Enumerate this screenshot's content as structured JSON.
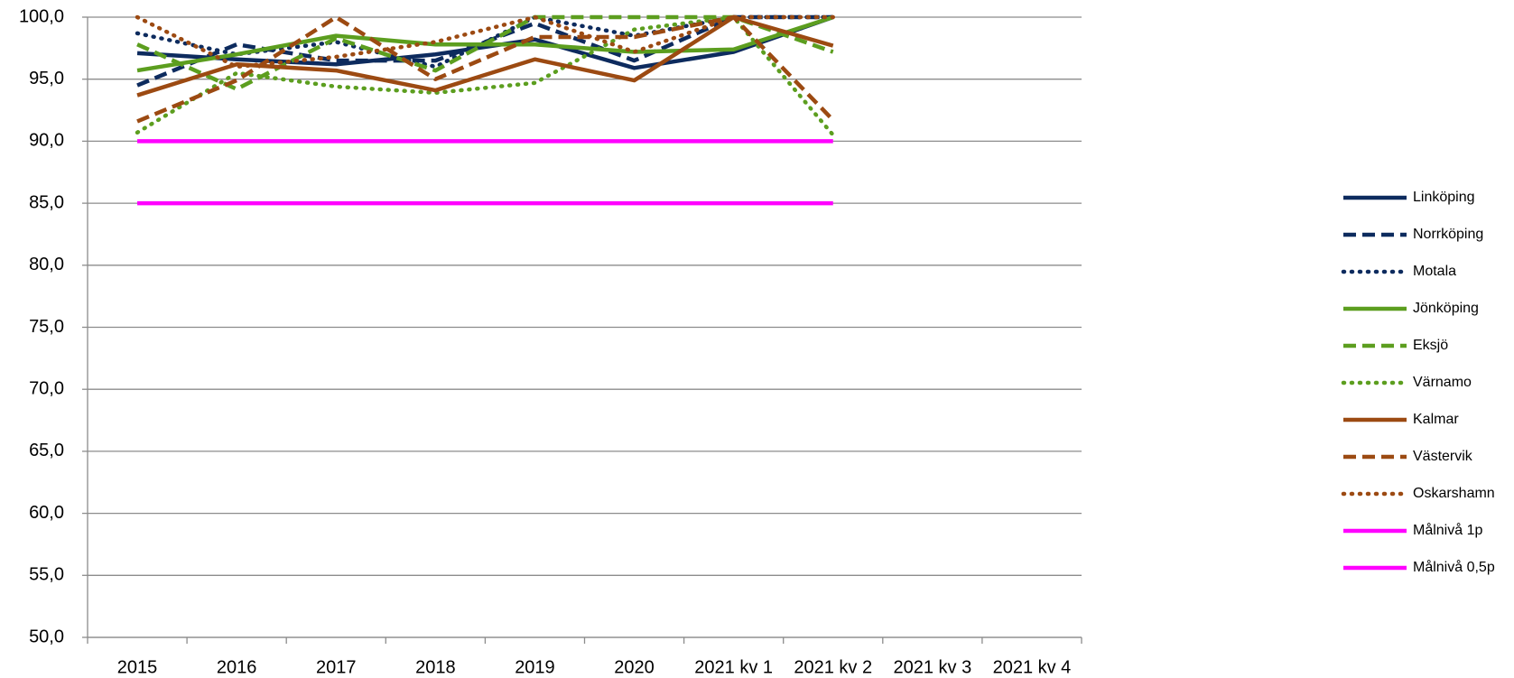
{
  "chart_data": {
    "type": "line",
    "categories": [
      "2015",
      "2016",
      "2017",
      "2018",
      "2019",
      "2020",
      "2021 kv 1",
      "2021 kv 2",
      "2021 kv 3",
      "2021 kv 4"
    ],
    "ylim": [
      50,
      100
    ],
    "yticks": [
      {
        "value": 50,
        "label": "50,0"
      },
      {
        "value": 55,
        "label": "55,0"
      },
      {
        "value": 60,
        "label": "60,0"
      },
      {
        "value": 65,
        "label": "65,0"
      },
      {
        "value": 70,
        "label": "70,0"
      },
      {
        "value": 75,
        "label": "75,0"
      },
      {
        "value": 80,
        "label": "80,0"
      },
      {
        "value": 85,
        "label": "85,0"
      },
      {
        "value": 90,
        "label": "90,0"
      },
      {
        "value": 95,
        "label": "95,0"
      },
      {
        "value": 100,
        "label": "100,0"
      }
    ],
    "grid": true,
    "legend": "right",
    "series": [
      {
        "name": "Linköping",
        "color": "#0d2b5e",
        "dash": "solid",
        "values": [
          97.1,
          96.6,
          96.2,
          97.0,
          98.2,
          95.9,
          97.2,
          100,
          null,
          null
        ]
      },
      {
        "name": "Norrköping",
        "color": "#0d2b5e",
        "dash": "dashed",
        "values": [
          94.5,
          97.8,
          96.5,
          96.5,
          99.5,
          96.5,
          100,
          100,
          null,
          null
        ]
      },
      {
        "name": "Motala",
        "color": "#0d2b5e",
        "dash": "dotted",
        "values": [
          98.7,
          97.0,
          98.0,
          96.0,
          100,
          98.5,
          100,
          100,
          null,
          null
        ]
      },
      {
        "name": "Jönköping",
        "color": "#5c9e1f",
        "dash": "solid",
        "values": [
          95.7,
          97.0,
          98.5,
          97.8,
          97.8,
          97.2,
          97.4,
          100,
          null,
          null
        ]
      },
      {
        "name": "Eksjö",
        "color": "#5c9e1f",
        "dash": "dashed",
        "values": [
          97.8,
          94.2,
          98.3,
          95.7,
          100,
          100,
          100,
          97.2,
          null,
          null
        ]
      },
      {
        "name": "Värnamo",
        "color": "#5c9e1f",
        "dash": "dotted",
        "values": [
          90.7,
          95.5,
          94.4,
          93.9,
          94.7,
          99.0,
          100,
          90.5,
          null,
          null
        ]
      },
      {
        "name": "Kalmar",
        "color": "#9c4a12",
        "dash": "solid",
        "values": [
          93.7,
          96.2,
          95.7,
          94.1,
          96.6,
          94.9,
          100,
          97.7,
          null,
          null
        ]
      },
      {
        "name": "Västervik",
        "color": "#9c4a12",
        "dash": "dashed",
        "values": [
          91.6,
          94.9,
          100,
          95.0,
          98.4,
          98.4,
          100,
          91.7,
          null,
          null
        ]
      },
      {
        "name": "Oskarshamn",
        "color": "#9c4a12",
        "dash": "dotted",
        "values": [
          100,
          96.0,
          96.8,
          98.0,
          100,
          97.2,
          100,
          100,
          null,
          null
        ]
      },
      {
        "name": "Målnivå 1p",
        "color": "#ff00ff",
        "dash": "solid",
        "values": [
          90,
          90,
          90,
          90,
          90,
          90,
          90,
          90,
          null,
          null
        ]
      },
      {
        "name": "Målnivå 0,5p",
        "color": "#ff00ff",
        "dash": "solid",
        "values": [
          85,
          85,
          85,
          85,
          85,
          85,
          85,
          85,
          null,
          null
        ]
      }
    ]
  }
}
